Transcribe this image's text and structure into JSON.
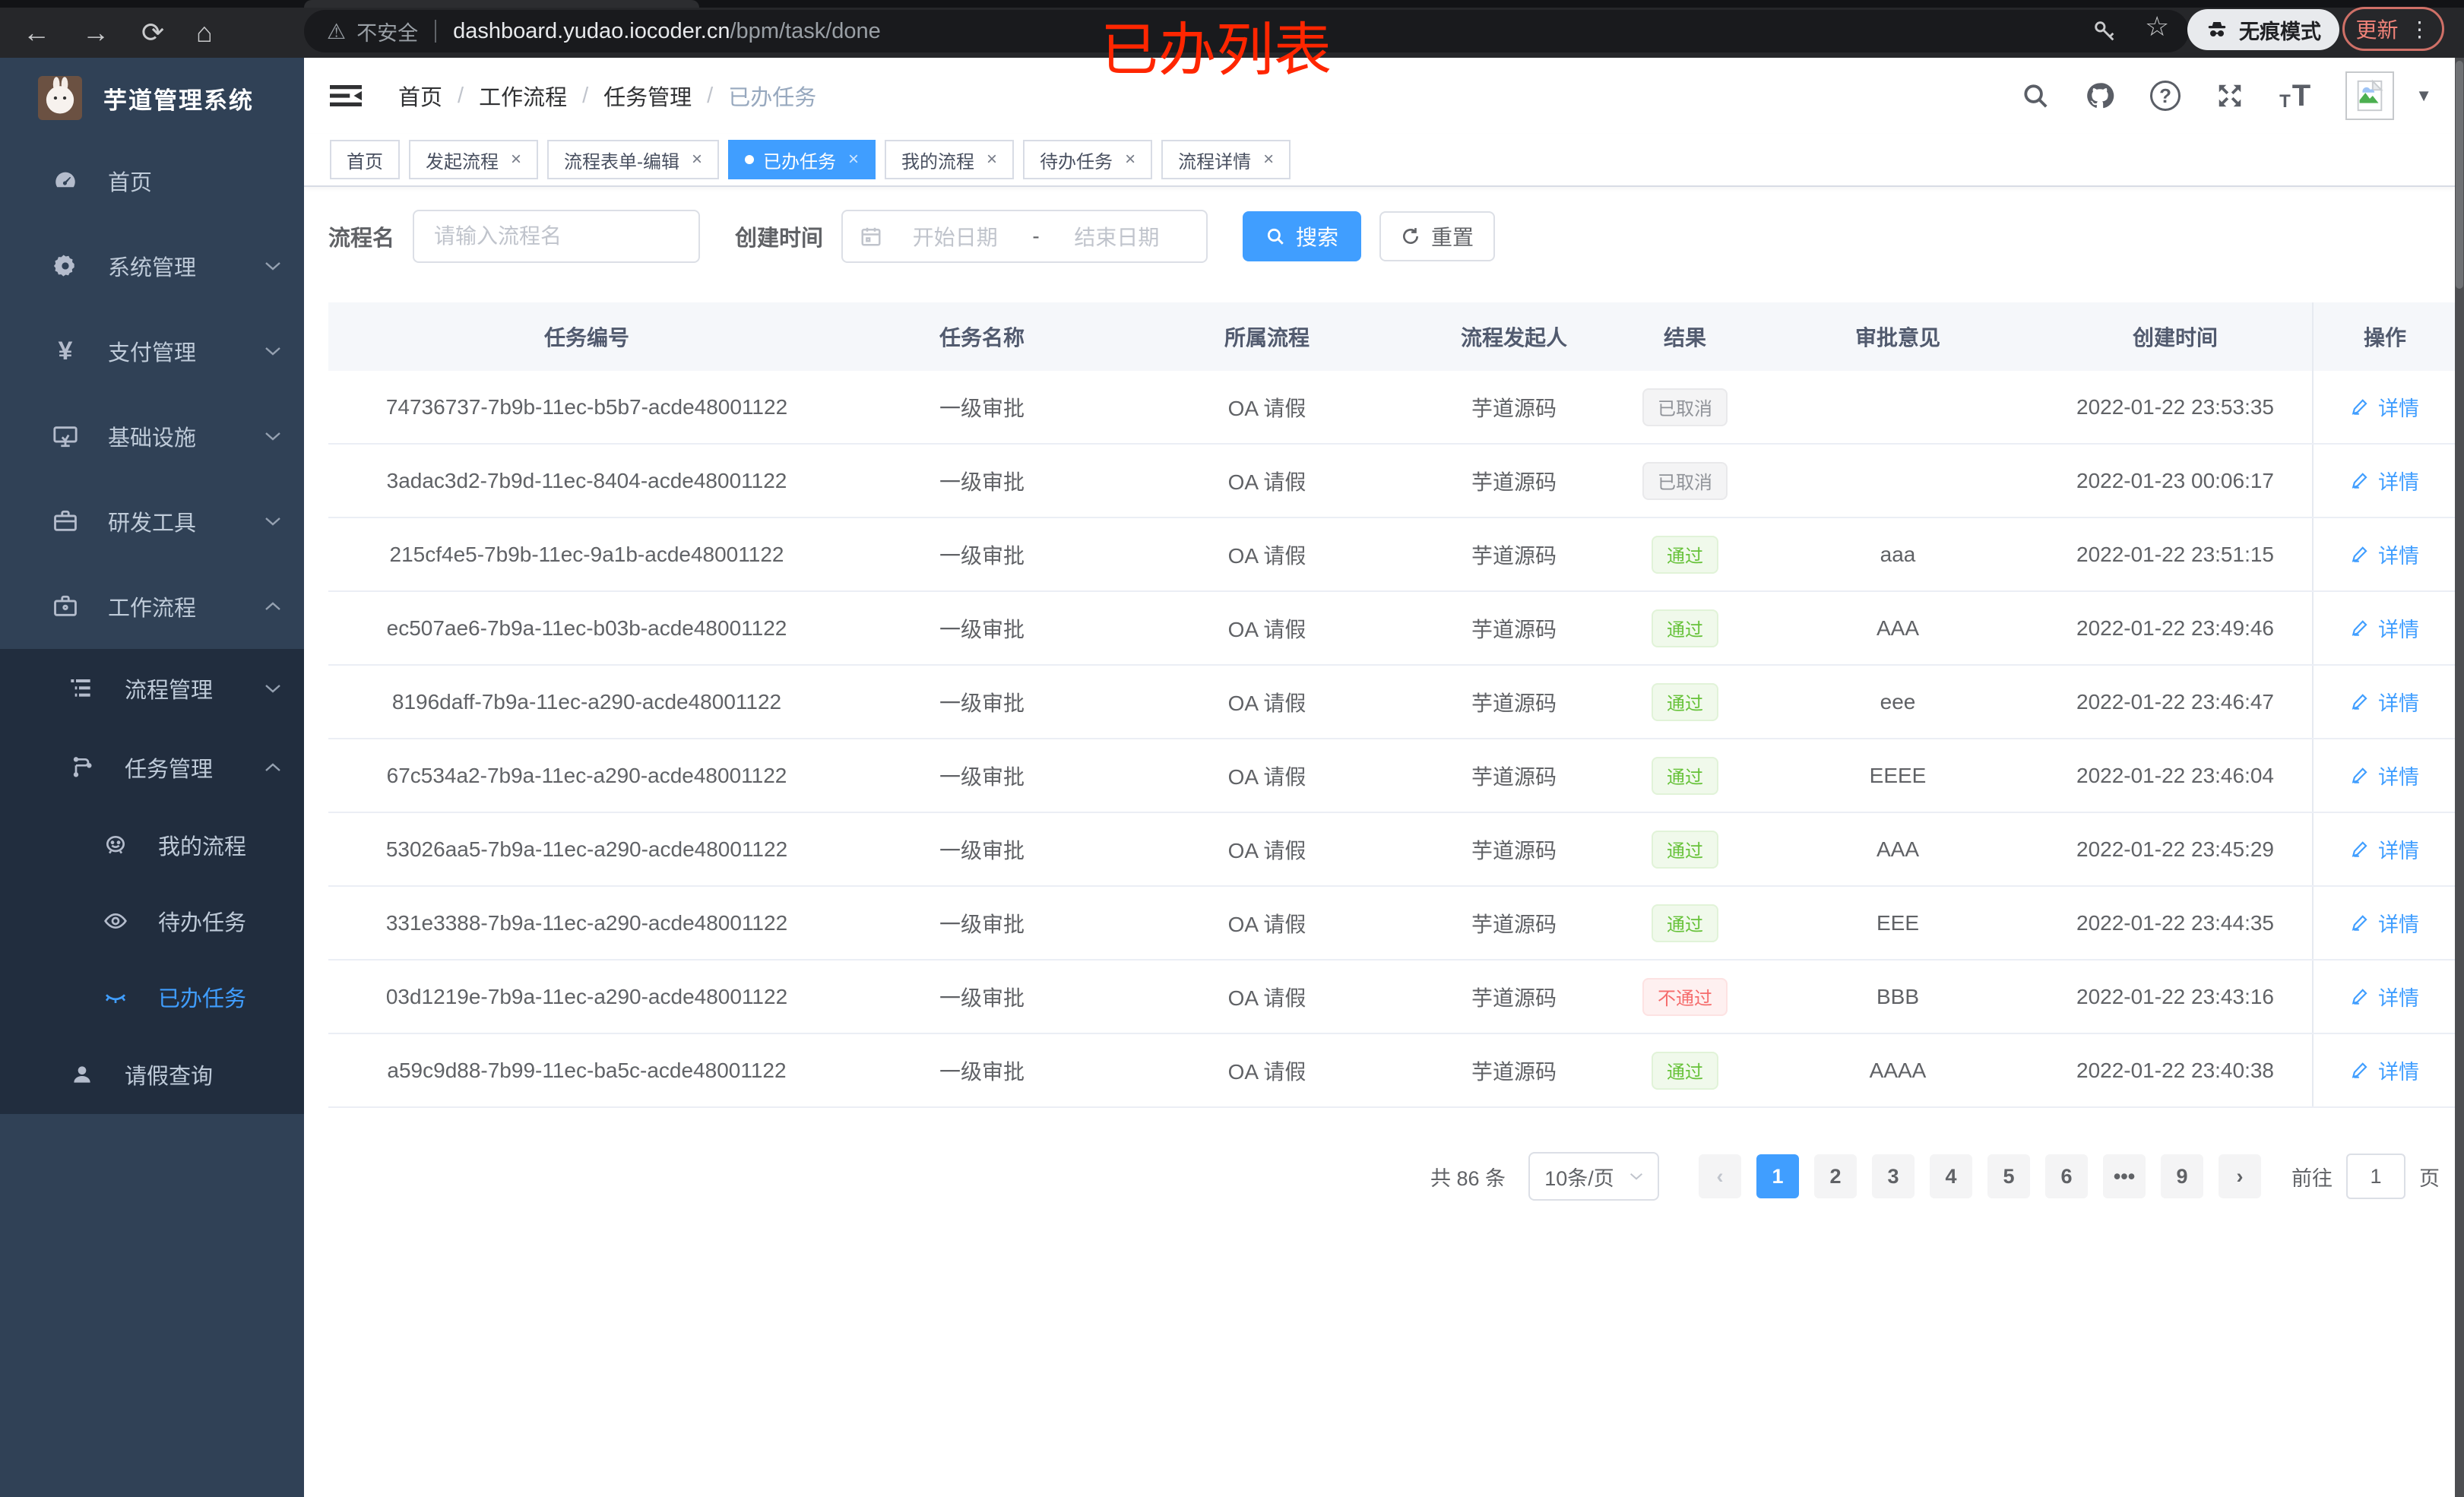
{
  "browser": {
    "security_label": "不安全",
    "url_host": "dashboard.yudao.iocoder.cn",
    "url_path": "/bpm/task/done",
    "incognito_label": "无痕模式",
    "update_label": "更新",
    "annotation": "已办列表"
  },
  "sidebar": {
    "title": "芋道管理系统",
    "menu": {
      "home": "首页",
      "system": "系统管理",
      "pay": "支付管理",
      "infra": "基础设施",
      "dev": "研发工具",
      "workflow": "工作流程",
      "process_mgmt": "流程管理",
      "task_mgmt": "任务管理",
      "my_process": "我的流程",
      "todo": "待办任务",
      "done": "已办任务",
      "leave": "请假查询"
    }
  },
  "header": {
    "breadcrumb": [
      "首页",
      "工作流程",
      "任务管理",
      "已办任务"
    ]
  },
  "tabs": {
    "items": [
      {
        "label": "首页",
        "closable": false,
        "active": false
      },
      {
        "label": "发起流程",
        "closable": true,
        "active": false
      },
      {
        "label": "流程表单-编辑",
        "closable": true,
        "active": false
      },
      {
        "label": "已办任务",
        "closable": true,
        "active": true
      },
      {
        "label": "我的流程",
        "closable": true,
        "active": false
      },
      {
        "label": "待办任务",
        "closable": true,
        "active": false
      },
      {
        "label": "流程详情",
        "closable": true,
        "active": false
      }
    ]
  },
  "filter": {
    "name_label": "流程名",
    "name_placeholder": "请输入流程名",
    "time_label": "创建时间",
    "start_placeholder": "开始日期",
    "range_separator": "-",
    "end_placeholder": "结束日期",
    "search_label": "搜索",
    "reset_label": "重置"
  },
  "table": {
    "headers": [
      "任务编号",
      "任务名称",
      "所属流程",
      "流程发起人",
      "结果",
      "审批意见",
      "创建时间",
      "操作"
    ],
    "action_label": "详情",
    "rows": [
      {
        "id": "74736737-7b9b-11ec-b5b7-acde48001122",
        "name": "一级审批",
        "process": "OA 请假",
        "starter": "芋道源码",
        "result": "已取消",
        "result_type": "info",
        "comment": "",
        "created": "2022-01-22 23:53:35"
      },
      {
        "id": "3adac3d2-7b9d-11ec-8404-acde48001122",
        "name": "一级审批",
        "process": "OA 请假",
        "starter": "芋道源码",
        "result": "已取消",
        "result_type": "info",
        "comment": "",
        "created": "2022-01-23 00:06:17"
      },
      {
        "id": "215cf4e5-7b9b-11ec-9a1b-acde48001122",
        "name": "一级审批",
        "process": "OA 请假",
        "starter": "芋道源码",
        "result": "通过",
        "result_type": "success",
        "comment": "aaa",
        "created": "2022-01-22 23:51:15"
      },
      {
        "id": "ec507ae6-7b9a-11ec-b03b-acde48001122",
        "name": "一级审批",
        "process": "OA 请假",
        "starter": "芋道源码",
        "result": "通过",
        "result_type": "success",
        "comment": "AAA",
        "created": "2022-01-22 23:49:46"
      },
      {
        "id": "8196daff-7b9a-11ec-a290-acde48001122",
        "name": "一级审批",
        "process": "OA 请假",
        "starter": "芋道源码",
        "result": "通过",
        "result_type": "success",
        "comment": "eee",
        "created": "2022-01-22 23:46:47"
      },
      {
        "id": "67c534a2-7b9a-11ec-a290-acde48001122",
        "name": "一级审批",
        "process": "OA 请假",
        "starter": "芋道源码",
        "result": "通过",
        "result_type": "success",
        "comment": "EEEE",
        "created": "2022-01-22 23:46:04"
      },
      {
        "id": "53026aa5-7b9a-11ec-a290-acde48001122",
        "name": "一级审批",
        "process": "OA 请假",
        "starter": "芋道源码",
        "result": "通过",
        "result_type": "success",
        "comment": "AAA",
        "created": "2022-01-22 23:45:29"
      },
      {
        "id": "331e3388-7b9a-11ec-a290-acde48001122",
        "name": "一级审批",
        "process": "OA 请假",
        "starter": "芋道源码",
        "result": "通过",
        "result_type": "success",
        "comment": "EEE",
        "created": "2022-01-22 23:44:35"
      },
      {
        "id": "03d1219e-7b9a-11ec-a290-acde48001122",
        "name": "一级审批",
        "process": "OA 请假",
        "starter": "芋道源码",
        "result": "不通过",
        "result_type": "danger",
        "comment": "BBB",
        "created": "2022-01-22 23:43:16"
      },
      {
        "id": "a59c9d88-7b99-11ec-ba5c-acde48001122",
        "name": "一级审批",
        "process": "OA 请假",
        "starter": "芋道源码",
        "result": "通过",
        "result_type": "success",
        "comment": "AAAA",
        "created": "2022-01-22 23:40:38"
      }
    ]
  },
  "pagination": {
    "total": "共 86 条",
    "page_size": "10条/页",
    "prev": "‹",
    "next": "›",
    "pages": [
      "1",
      "2",
      "3",
      "4",
      "5",
      "6",
      "•••",
      "9"
    ],
    "active_page": "1",
    "goto_label": "前往",
    "goto_value": "1",
    "unit_label": "页"
  },
  "colors": {
    "accent": "#409eff",
    "sidebar_bg": "#304156",
    "submenu_bg": "#212d3e",
    "success": "#67c23a",
    "danger": "#f56c6c",
    "info": "#909399",
    "annotation_red": "#ff2600"
  }
}
